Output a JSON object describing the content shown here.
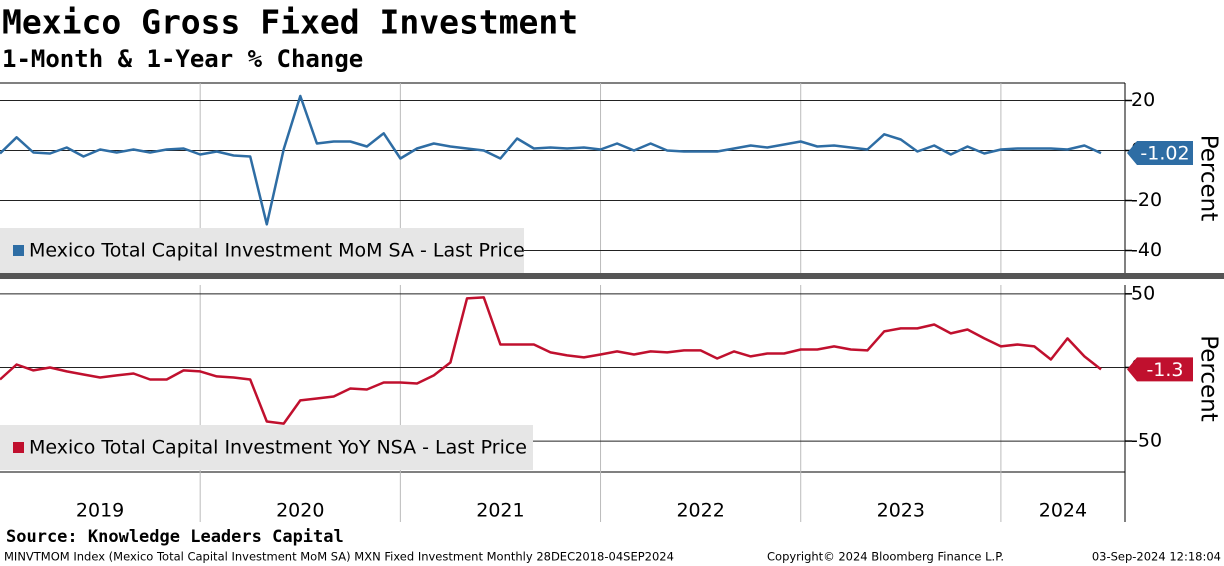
{
  "title": "Mexico Gross Fixed Investment",
  "subtitle": "1-Month & 1-Year % Change",
  "source": "Source: Knowledge Leaders Capital",
  "footer": {
    "description": "MINVTMOM Index (Mexico Total Capital Investment MoM SA) MXN Fixed Investment  Monthly 28DEC2018-04SEP2024",
    "copyright": "Copyright© 2024 Bloomberg Finance L.P.",
    "timestamp": "03-Sep-2024 12:18:04"
  },
  "chart_data": [
    {
      "type": "line",
      "ylabel": "Percent",
      "ylim": [
        -49,
        27
      ],
      "yticks": [
        20,
        0,
        -20,
        -40
      ],
      "xlim": [
        2019,
        2024.62
      ],
      "xgrid": [
        2020,
        2021,
        2022,
        2023,
        2024
      ],
      "grid": true,
      "x": [
        2019,
        2019.083,
        2019.167,
        2019.25,
        2019.333,
        2019.417,
        2019.5,
        2019.583,
        2019.667,
        2019.75,
        2019.833,
        2019.917,
        2020,
        2020.083,
        2020.167,
        2020.25,
        2020.333,
        2020.417,
        2020.5,
        2020.583,
        2020.667,
        2020.75,
        2020.833,
        2020.917,
        2021,
        2021.083,
        2021.167,
        2021.25,
        2021.333,
        2021.417,
        2021.5,
        2021.583,
        2021.667,
        2021.75,
        2021.833,
        2021.917,
        2022,
        2022.083,
        2022.167,
        2022.25,
        2022.333,
        2022.417,
        2022.5,
        2022.583,
        2022.667,
        2022.75,
        2022.833,
        2022.917,
        2023,
        2023.083,
        2023.167,
        2023.25,
        2023.333,
        2023.417,
        2023.5,
        2023.583,
        2023.667,
        2023.75,
        2023.833,
        2023.917,
        2024,
        2024.083,
        2024.167,
        2024.25,
        2024.333,
        2024.417,
        2024.5
      ],
      "series": [
        {
          "name": "Mexico Total Capital Investment MoM SA - Last Price",
          "color": "#2e6da4",
          "values": [
            -1.2,
            5.3,
            -0.8,
            -1.2,
            1.2,
            -2.4,
            0.4,
            -0.8,
            0.4,
            -0.8,
            0.4,
            0.8,
            -1.6,
            -0.4,
            -2.0,
            -2.4,
            -29.5,
            0.5,
            21.8,
            2.8,
            3.6,
            3.6,
            1.6,
            6.9,
            -3.2,
            0.8,
            2.8,
            1.6,
            0.8,
            0,
            -3.2,
            4.8,
            0.8,
            1.2,
            0.8,
            1.2,
            0.4,
            2.8,
            0,
            2.8,
            0,
            -0.4,
            -0.4,
            -0.4,
            0.8,
            2.0,
            1.2,
            2.4,
            3.6,
            1.6,
            2.0,
            1.2,
            0.4,
            6.5,
            4.4,
            -0.4,
            2.0,
            -1.6,
            1.6,
            -1.2,
            0.4,
            0.8,
            0.8,
            0.8,
            0.4,
            2.0,
            -1.02
          ]
        }
      ]
    },
    {
      "type": "line",
      "ylabel": "Percent",
      "ylim": [
        -71,
        56
      ],
      "yticks": [
        50,
        0,
        -50
      ],
      "xlim": [
        2019,
        2024.62
      ],
      "xgrid": [
        2020,
        2021,
        2022,
        2023,
        2024
      ],
      "grid": true,
      "xticks": [
        {
          "value": 2019.5,
          "label": "2019"
        },
        {
          "value": 2020.5,
          "label": "2020"
        },
        {
          "value": 2021.5,
          "label": "2021"
        },
        {
          "value": 2022.5,
          "label": "2022"
        },
        {
          "value": 2023.5,
          "label": "2023"
        },
        {
          "value": 2024.31,
          "label": "2024"
        }
      ],
      "x": [
        2019,
        2019.083,
        2019.167,
        2019.25,
        2019.333,
        2019.417,
        2019.5,
        2019.583,
        2019.667,
        2019.75,
        2019.833,
        2019.917,
        2020,
        2020.083,
        2020.167,
        2020.25,
        2020.333,
        2020.417,
        2020.5,
        2020.583,
        2020.667,
        2020.75,
        2020.833,
        2020.917,
        2021,
        2021.083,
        2021.167,
        2021.25,
        2021.333,
        2021.417,
        2021.5,
        2021.583,
        2021.667,
        2021.75,
        2021.833,
        2021.917,
        2022,
        2022.083,
        2022.167,
        2022.25,
        2022.333,
        2022.417,
        2022.5,
        2022.583,
        2022.667,
        2022.75,
        2022.833,
        2022.917,
        2023,
        2023.083,
        2023.167,
        2023.25,
        2023.333,
        2023.417,
        2023.5,
        2023.583,
        2023.667,
        2023.75,
        2023.833,
        2023.917,
        2024,
        2024.083,
        2024.167,
        2024.25,
        2024.333,
        2024.417,
        2024.5
      ],
      "series": [
        {
          "name": "Mexico Total Capital Investment YoY NSA - Last Price",
          "color": "#c0102e",
          "values": [
            -8.2,
            2.0,
            -2.0,
            0,
            -2.7,
            -4.8,
            -6.8,
            -5.4,
            -4.1,
            -8.2,
            -8.2,
            -2.0,
            -2.7,
            -6.1,
            -6.8,
            -8.2,
            -36.7,
            -38.1,
            -22.4,
            -21.1,
            -19.7,
            -14.3,
            -15.0,
            -10.2,
            -10.2,
            -10.9,
            -5.4,
            3.4,
            46.9,
            47.6,
            15.6,
            15.6,
            15.6,
            10.2,
            8.2,
            6.8,
            8.8,
            10.9,
            8.8,
            10.9,
            10.2,
            11.6,
            11.6,
            6.1,
            10.9,
            7.5,
            9.5,
            9.5,
            12.2,
            12.2,
            14.3,
            12.2,
            11.6,
            24.5,
            26.5,
            26.5,
            29.2,
            23.1,
            25.8,
            19.7,
            14.3,
            15.6,
            14.3,
            5.4,
            19.7,
            7.5,
            -1.3
          ]
        }
      ]
    }
  ]
}
